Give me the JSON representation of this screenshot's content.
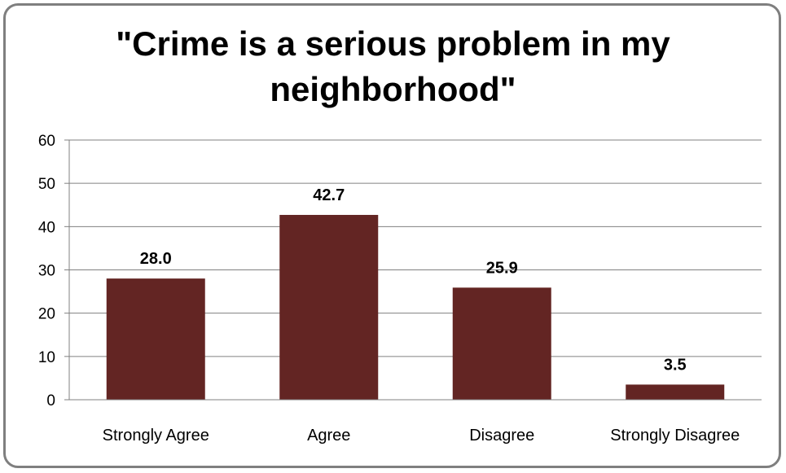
{
  "chart_data": {
    "type": "bar",
    "title_lines": [
      "\"Crime is a serious problem in my",
      "neighborhood\""
    ],
    "categories": [
      "Strongly Agree",
      "Agree",
      "Disagree",
      "Strongly Disagree"
    ],
    "values": [
      28.0,
      42.7,
      25.9,
      3.5
    ],
    "data_labels": [
      "28.0",
      "42.7",
      "25.9",
      "3.5"
    ],
    "ylim": [
      0,
      60
    ],
    "yticks": [
      0,
      10,
      20,
      30,
      40,
      50,
      60
    ],
    "grid": true,
    "legend": "none",
    "bar_color": "#632523",
    "grid_color": "#808080"
  }
}
